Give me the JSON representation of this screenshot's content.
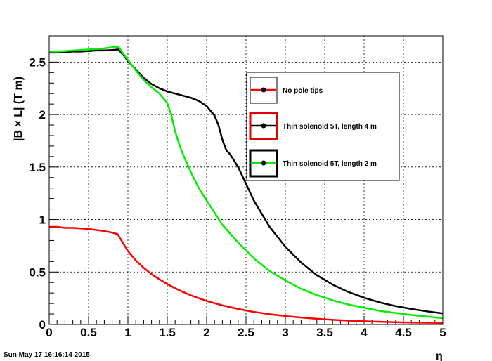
{
  "timestamp": "Sun May 17 16:16:14 2015",
  "chart_data": {
    "type": "line",
    "title": "",
    "xlabel": "η",
    "ylabel": "|B × L| (T m)",
    "xlim": [
      0,
      5
    ],
    "ylim": [
      0,
      2.75
    ],
    "grid": true,
    "legend_position": "top-right",
    "x_ticks": [
      "0",
      "0.5",
      "1",
      "1.5",
      "2",
      "2.5",
      "3",
      "3.5",
      "4",
      "4.5",
      "5"
    ],
    "y_ticks": [
      "0",
      "0.5",
      "1",
      "1.5",
      "2",
      "2.5"
    ],
    "series": [
      {
        "name": "No pole tips",
        "color": "#ff0000",
        "x": [
          0,
          0.1,
          0.2,
          0.3,
          0.4,
          0.5,
          0.6,
          0.7,
          0.8,
          0.87,
          0.95,
          1.0,
          1.1,
          1.2,
          1.3,
          1.4,
          1.5,
          1.6,
          1.7,
          1.8,
          1.9,
          2.0,
          2.2,
          2.4,
          2.6,
          2.8,
          3.0,
          3.2,
          3.4,
          3.6,
          3.8,
          4.0,
          4.2,
          4.4,
          4.6,
          4.8,
          5.0
        ],
        "y": [
          0.93,
          0.93,
          0.92,
          0.92,
          0.915,
          0.91,
          0.9,
          0.89,
          0.875,
          0.86,
          0.76,
          0.7,
          0.61,
          0.54,
          0.48,
          0.43,
          0.385,
          0.345,
          0.31,
          0.278,
          0.25,
          0.225,
          0.182,
          0.148,
          0.12,
          0.098,
          0.08,
          0.066,
          0.054,
          0.044,
          0.037,
          0.031,
          0.026,
          0.022,
          0.019,
          0.017,
          0.015
        ]
      },
      {
        "name": "Thin solenoid 5T, length 4 m",
        "color": "#000000",
        "x": [
          0,
          0.1,
          0.2,
          0.3,
          0.4,
          0.5,
          0.6,
          0.7,
          0.8,
          0.88,
          0.95,
          1.0,
          1.1,
          1.2,
          1.3,
          1.4,
          1.5,
          1.6,
          1.7,
          1.8,
          1.9,
          2.0,
          2.1,
          2.15,
          2.2,
          2.25,
          2.3,
          2.4,
          2.5,
          2.6,
          2.8,
          3.0,
          3.2,
          3.4,
          3.6,
          3.8,
          4.0,
          4.2,
          4.4,
          4.6,
          4.8,
          5.0
        ],
        "y": [
          2.59,
          2.59,
          2.595,
          2.6,
          2.6,
          2.605,
          2.61,
          2.61,
          2.615,
          2.62,
          2.56,
          2.51,
          2.43,
          2.35,
          2.29,
          2.25,
          2.22,
          2.2,
          2.18,
          2.16,
          2.13,
          2.08,
          1.99,
          1.9,
          1.76,
          1.66,
          1.62,
          1.5,
          1.34,
          1.18,
          0.93,
          0.74,
          0.59,
          0.47,
          0.38,
          0.31,
          0.255,
          0.21,
          0.175,
          0.148,
          0.125,
          0.105
        ]
      },
      {
        "name": "Thin solenoid 5T, length 2 m",
        "color": "#00ee00",
        "x": [
          0,
          0.1,
          0.2,
          0.3,
          0.4,
          0.5,
          0.6,
          0.7,
          0.8,
          0.88,
          0.95,
          1.0,
          1.1,
          1.2,
          1.3,
          1.4,
          1.5,
          1.55,
          1.6,
          1.65,
          1.7,
          1.8,
          1.9,
          2.0,
          2.2,
          2.4,
          2.6,
          2.8,
          3.0,
          3.2,
          3.4,
          3.6,
          3.8,
          4.0,
          4.2,
          4.4,
          4.6,
          4.8,
          5.0
        ],
        "y": [
          2.6,
          2.6,
          2.605,
          2.61,
          2.615,
          2.62,
          2.625,
          2.63,
          2.64,
          2.645,
          2.57,
          2.52,
          2.42,
          2.33,
          2.26,
          2.2,
          2.11,
          2.0,
          1.84,
          1.72,
          1.62,
          1.45,
          1.3,
          1.18,
          0.95,
          0.78,
          0.63,
          0.51,
          0.42,
          0.34,
          0.28,
          0.23,
          0.19,
          0.16,
          0.13,
          0.11,
          0.09,
          0.075,
          0.06
        ]
      }
    ]
  }
}
